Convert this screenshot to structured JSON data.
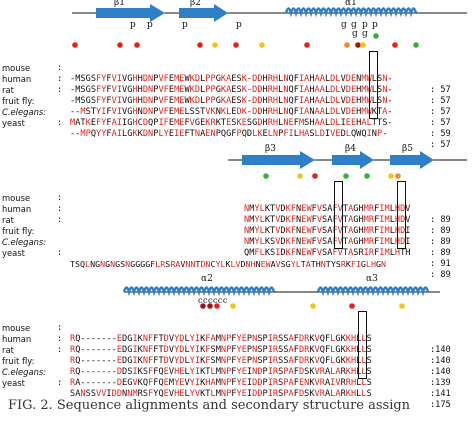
{
  "block1": {
    "labels": {
      "b1": "β1",
      "b2": "β2",
      "a1": "α1",
      "p1": "p",
      "p2": "p",
      "p3": "p",
      "p4": "p",
      "g1": "g",
      "g2": "g",
      "p5": "p",
      "p6": "p",
      "g3": "g",
      "g4": "g"
    },
    "rows": [
      {
        "species": "mouse",
        "italic": false,
        "seq": "-MSGSFYFVIVGHHDNPVFEMEWKDLPPGKAESK-DDHRHLNQFIAHAALDLVDENMWLSN-",
        "num": ": 57"
      },
      {
        "species": "human",
        "italic": false,
        "seq": "-MSGSFYFVIVGHHDNPVFEMEWKDLPPGKAESK-DDHRHLNQFIAHAALDLVDEHMWLSN-",
        "num": ": 57"
      },
      {
        "species": "rat",
        "italic": false,
        "seq": "-MSGSFYFVIVGHHDNPVFEMEWKDLPPGKAESK-DDHRHLNQFIAHAALDLVDEHMWLSN-",
        "num": ": 57"
      },
      {
        "species": "fruit fly:",
        "italic": false,
        "seq": "--MSTYIFVIVGHNDNPVFEMELSSTVKNKLEDK-DDHRHLNQFIANAALDLVDEHMWKTA-",
        "num": ": 57"
      },
      {
        "species": "C.elegans:",
        "italic": true,
        "seq": "MATKEFYFAIIGHCDQPIFEMEFVGEKRKTESKESGDHRHLNEFMSHAALDLIEEHALTTS-",
        "num": ": 59"
      },
      {
        "species": "yeast",
        "italic": false,
        "seq": "--MPQYYFAILGKKDNPLYEIEFTNAENPQGFPQDLKELNPFILHASLDIVEDLQWQINP-",
        "num": ": 57"
      }
    ]
  },
  "block2": {
    "labels": {
      "b3": "β3",
      "b4": "β4",
      "b5": "β5"
    },
    "rows": [
      {
        "species": "mouse",
        "italic": false,
        "seq": "NMYLKTVDKFNEWFVSAFVTAGHMRFIMLHDV",
        "num": ": 89"
      },
      {
        "species": "human",
        "italic": false,
        "seq": "NMYLKTVDKFNEWFVSAFVTAGHMRFIMLHDV",
        "num": ": 89"
      },
      {
        "species": "rat",
        "italic": false,
        "seq": "NMYLKTVDKFNEWFVSAFVTAGHMRFIMLHDI",
        "num": ": 89"
      },
      {
        "species": "fruit fly:",
        "italic": false,
        "seq": "NMYLKSVDKFNEWFVSAFVTAGHMRFIMLHDI",
        "num": ": 89"
      },
      {
        "species": "C.elegans:",
        "italic": true,
        "seq": "QMFLKSIDKFNEWFVSAFVTASRIRFIMLHTH",
        "num": ": 91"
      },
      {
        "species": "yeast",
        "italic": false,
        "seq": "TSQLNGNGNGSNGGGGFLRSRAVNNTDNCYLKLVDNHNEWAVSGYLTATHNTYSRKFIGLHGN",
        "num": ": 89"
      }
    ]
  },
  "block3": {
    "labels": {
      "a2": "α2",
      "a3": "α3",
      "c": "cccccc"
    },
    "rows": [
      {
        "species": "mouse",
        "italic": false,
        "seq": "RQ-------EDGIKNFFTDVYDLYIKFAMNPFYEPNSPIRSSAFDRKVQFLGKKHLLS",
        "num": ":140"
      },
      {
        "species": "human",
        "italic": false,
        "seq": "RQ-------EDGIKNFFTDVYDLYIKFSMNPFYEPNSPIRSSAFDRKVQFLGKKHLLS",
        "num": ":140"
      },
      {
        "species": "rat",
        "italic": false,
        "seq": "RQ-------EDGIKNFFTDVYDLYIKFSMNPFYEPNSPIRSSAFDRKVQFLGKKHLLS",
        "num": ":140"
      },
      {
        "species": "fruit fly:",
        "italic": false,
        "seq": "RQ-------DDSIKSFFQEVHELYIKTLMNPFYEINDPIRSPAFDSKVRALARKHLLS",
        "num": ":139"
      },
      {
        "species": "C.elegans:",
        "italic": true,
        "seq": "RA-------DEGVKQFFQEMYEVYIKHAMNPFYEIDDPIRSPAFENKVRAIVRRHLLS",
        "num": ":141"
      },
      {
        "species": "yeast",
        "italic": false,
        "seq": "SANSSVVIDDNNMRSFYQEVHELYVKTLMNPFYEIDDPIRSPAFDSKVRALARKHLLS",
        "num": ":175"
      }
    ]
  },
  "colors": {
    "arrow": "#2f7fc8",
    "helix": "#2f7fc8",
    "residue_red": "#e2231a",
    "dot_red": "#e2231a",
    "dot_orange": "#f08a2a",
    "dot_yellow": "#f0c419",
    "dot_green": "#3cae3a",
    "dot_dark_red": "#a3141a"
  },
  "caption": "FIG. 2. Sequence alignments and secondary structure assign"
}
